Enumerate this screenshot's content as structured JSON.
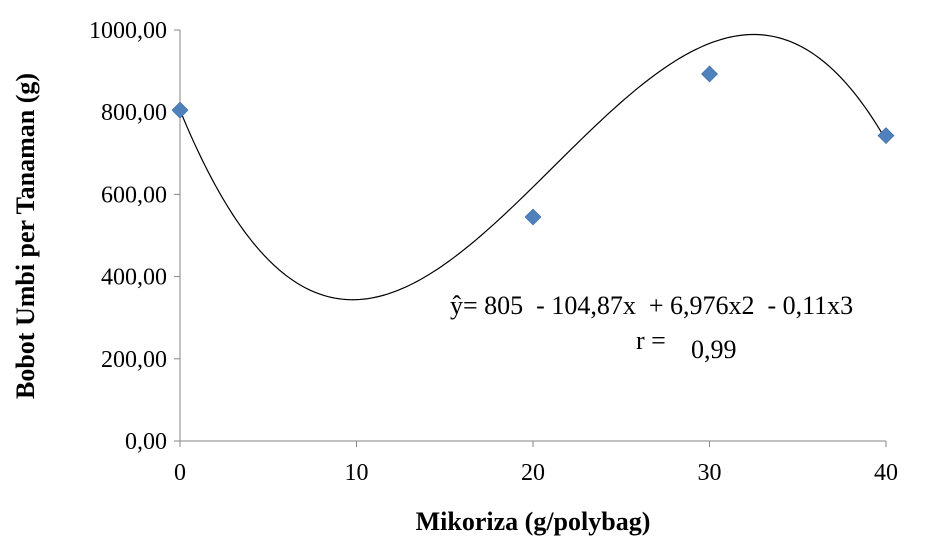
{
  "chart_data": {
    "type": "scatter",
    "title": "",
    "xlabel": "Mikoriza (g/polybag)",
    "ylabel": "Bobot Umbi per Tanaman (g)",
    "xlim": [
      0,
      40
    ],
    "ylim": [
      0,
      1000
    ],
    "x_ticks": [
      "0",
      "10",
      "20",
      "30",
      "40"
    ],
    "y_ticks": [
      "0,00",
      "200,00",
      "400,00",
      "600,00",
      "800,00",
      "1000,00"
    ],
    "grid": false,
    "points": [
      {
        "x": 0,
        "y": 805
      },
      {
        "x": 20,
        "y": 545
      },
      {
        "x": 30,
        "y": 893
      },
      {
        "x": 40,
        "y": 743
      }
    ],
    "trendline": {
      "type": "polynomial",
      "order": 3,
      "coefficients": [
        805,
        -104.87,
        6.976,
        -0.11
      ],
      "equation_text": "ŷ= 805  - 104,87x  + 6,976x2  - 0,11x3",
      "r_label": "r = ",
      "r_value": "0,99"
    },
    "colors": {
      "marker": "#4F81BD",
      "curve": "#000000",
      "axis": "#868686"
    }
  }
}
